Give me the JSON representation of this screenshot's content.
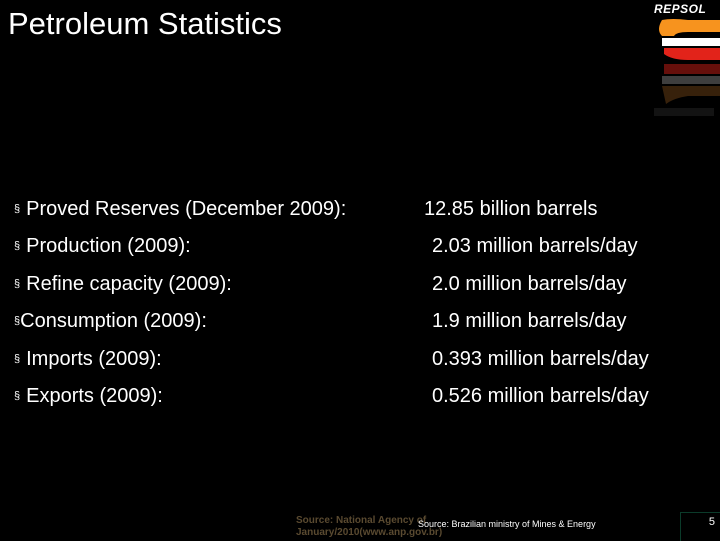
{
  "slide": {
    "title": "Petroleum Statistics",
    "logo_text": "REPSOL",
    "items": [
      {
        "label": "Proved Reserves (December  2009):",
        "value": "12.85 billion barrels"
      },
      {
        "label": "Production (2009):",
        "value": "2.03 million barrels/day"
      },
      {
        "label": "Refine capacity (2009):",
        "value": "2.0 million barrels/day"
      },
      {
        "label": "Consumption (2009):",
        "value": "1.9 million barrels/day"
      },
      {
        "label": "Imports (2009):",
        "value": "0.393 million barrels/day"
      },
      {
        "label": "Exports (2009):",
        "value": "0.526 million barrels/day"
      }
    ],
    "bullet_glyph": "§",
    "footer_ghost_line1": "Source: National Agency of",
    "footer_ghost_line2": "January/2010(www.anp.gov.br)",
    "footer_source": "Source: Brazilian ministry of Mines & Energy",
    "page_number": "5"
  },
  "colors": {
    "background": "#000000",
    "text": "#ffffff",
    "logo_orange": "#f7931e",
    "logo_red": "#e2231a"
  }
}
